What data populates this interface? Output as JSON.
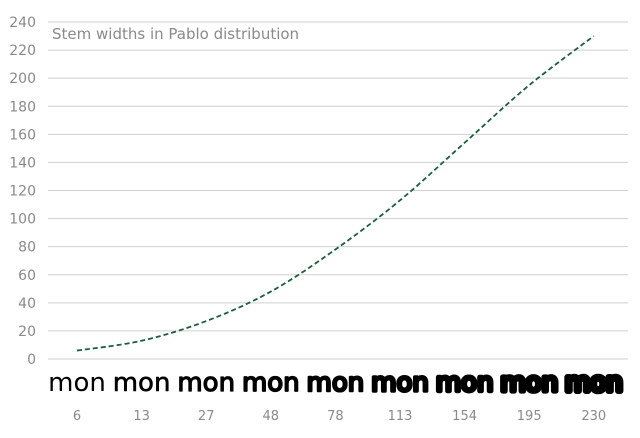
{
  "chart_data": {
    "type": "line",
    "title": "Stem widths in Pablo distribution",
    "xlabel": "",
    "ylabel": "",
    "ylim": [
      0,
      240
    ],
    "yticks": [
      0,
      20,
      40,
      60,
      80,
      100,
      120,
      140,
      160,
      180,
      200,
      220,
      240
    ],
    "grid": true,
    "categories": [
      "6",
      "13",
      "27",
      "48",
      "78",
      "113",
      "154",
      "195",
      "230"
    ],
    "series": [
      {
        "values": [
          6,
          13,
          27,
          48,
          78,
          113,
          154,
          195,
          230
        ]
      }
    ],
    "sample_text": "mon",
    "line_color": "#1e5e3a"
  }
}
